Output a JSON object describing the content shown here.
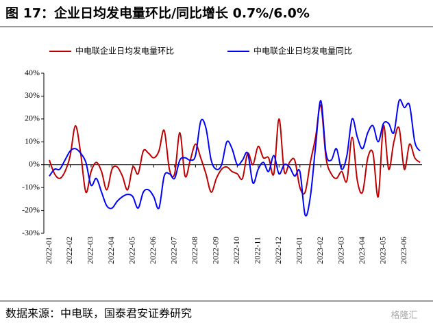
{
  "chart_data": {
    "type": "line",
    "title": "图 17：企业日均发电量环比/同比增长 0.7%/6.0%",
    "source": "数据来源：中电联，国泰君安证券研究",
    "watermark": "格隆汇",
    "categories": [
      "2022-01",
      null,
      null,
      null,
      "2022-02",
      null,
      null,
      null,
      "2022-03",
      null,
      null,
      null,
      "2022-04",
      null,
      null,
      null,
      "2022-05",
      null,
      null,
      null,
      "2022-06",
      null,
      null,
      null,
      "2022-07",
      null,
      null,
      null,
      "2022-08",
      null,
      null,
      null,
      "2022-09",
      null,
      null,
      null,
      "2022-10",
      null,
      null,
      null,
      "2022-11",
      null,
      null,
      null,
      "2022-12",
      null,
      null,
      null,
      "2023-01",
      null,
      null,
      null,
      "2023-02",
      null,
      null,
      null,
      "2023-03",
      null,
      null,
      null,
      "2023-04",
      null,
      null,
      null,
      "2023-05",
      null,
      null,
      null,
      "2023-06",
      null,
      null,
      null
    ],
    "series": [
      {
        "name": "中电联企业日均发电量环比",
        "color": "#c00000",
        "values": [
          2,
          -4,
          -6,
          -3,
          4,
          17,
          5,
          -12,
          -3,
          1,
          -3,
          -11,
          -2,
          -1,
          -5,
          -11,
          -1,
          -4,
          6,
          5,
          3,
          6,
          15,
          -2,
          -4,
          14,
          -5,
          2,
          9,
          3,
          -4,
          -12,
          -6,
          -2,
          -1,
          -3,
          -4,
          -6,
          5,
          0,
          8,
          3,
          3,
          -4,
          20,
          -3,
          1,
          2,
          -10,
          -12,
          1,
          12,
          26,
          3,
          -4,
          -6,
          -3,
          -7,
          12,
          -7,
          -12,
          3,
          5,
          -14,
          17,
          -2,
          10,
          16,
          -2,
          9,
          3,
          1
        ]
      },
      {
        "name": "中电联企业日均发电量同比",
        "color": "#0000ff",
        "values": [
          -5,
          -2,
          -2,
          2,
          6,
          7,
          5,
          1,
          -9,
          -6,
          -12,
          -18,
          -19,
          -16,
          -14,
          -13,
          -14,
          -19,
          -12,
          -11,
          -14,
          -19,
          -5,
          -4,
          -6,
          2,
          3,
          2,
          4,
          19,
          16,
          2,
          -2,
          0,
          10,
          7,
          0,
          2,
          5,
          -8,
          -2,
          1,
          -3,
          4,
          -4,
          0,
          -1,
          -5,
          -3,
          -22,
          -14,
          8,
          28,
          5,
          2,
          7,
          -2,
          4,
          20,
          12,
          7,
          14,
          17,
          10,
          18,
          18,
          14,
          28,
          25,
          26,
          10,
          6
        ]
      }
    ],
    "ylim": [
      -30,
      40
    ],
    "yticks": [
      {
        "value": -30,
        "label": "-30%"
      },
      {
        "value": -20,
        "label": "-20%"
      },
      {
        "value": -10,
        "label": "-10%"
      },
      {
        "value": 0,
        "label": "0%"
      },
      {
        "value": 10,
        "label": "10%"
      },
      {
        "value": 20,
        "label": "20%"
      },
      {
        "value": 30,
        "label": "30%"
      },
      {
        "value": 40,
        "label": "40%"
      }
    ],
    "grid": false,
    "legend": "top"
  }
}
